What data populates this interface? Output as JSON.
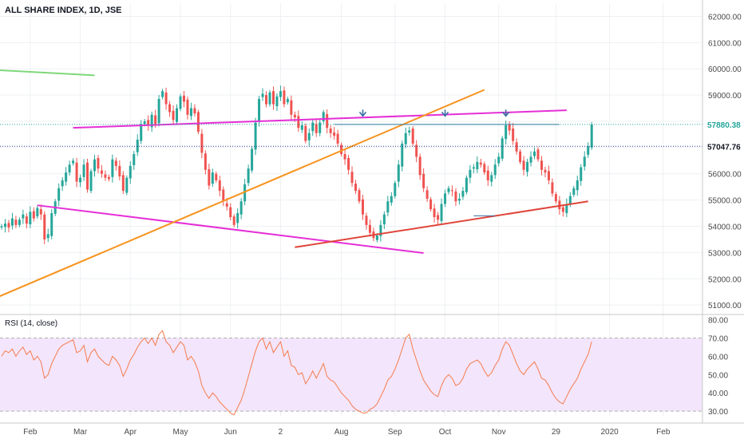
{
  "header": {
    "title": "ALL SHARE INDEX, 1D, JSE",
    "rsi_label": "RSI (14, close)"
  },
  "colors": {
    "up": "#26a69a",
    "down": "#ef5350",
    "grid": "#eef0f3",
    "axis_text": "#4a4a4a",
    "trend_magenta": "#e52fd6",
    "trend_orange": "#f7931e",
    "trend_red": "#e0453a",
    "trend_green": "#7ed87a",
    "trend_blue": "#3a6ea5",
    "rsi_line": "#f57c4d",
    "rsi_band": "#f3e5fb",
    "price_label_bg": "#131722"
  },
  "chart_data": [
    {
      "type": "candlestick",
      "title": "ALL SHARE INDEX, 1D, JSE",
      "x_ticks": [
        "Feb",
        "Mar",
        "Apr",
        "May",
        "Jun",
        "2",
        "Aug",
        "Sep",
        "Oct",
        "Nov",
        "29",
        "2020",
        "Feb"
      ],
      "y_ticks": [
        "62000.00",
        "61000.00",
        "60000.00",
        "59000.00",
        "58000.00",
        "57000.00",
        "56000.00",
        "55000.00",
        "54000.00",
        "53000.00",
        "52000.00",
        "51000.00"
      ],
      "y_tick_values": [
        62000,
        61000,
        60000,
        59000,
        58000,
        57000,
        56000,
        55000,
        54000,
        53000,
        52000,
        51000
      ],
      "ylim": [
        50700,
        62500
      ],
      "price_labels": [
        {
          "text": "57880.38",
          "value": 57880.38
        },
        {
          "text": "57047.76",
          "value": 57047.76
        }
      ],
      "closes": [
        54000,
        54100,
        53950,
        54300,
        54050,
        54250,
        54450,
        54100,
        54550,
        54300,
        54700,
        54450,
        53500,
        53700,
        54500,
        54950,
        55450,
        55750,
        56050,
        56350,
        56500,
        55700,
        55850,
        56350,
        55400,
        56100,
        56550,
        56200,
        56000,
        55850,
        55800,
        56550,
        56300,
        55900,
        55350,
        55850,
        56300,
        56750,
        57300,
        57900,
        58000,
        57850,
        58250,
        57900,
        58850,
        59150,
        58650,
        58350,
        58050,
        58500,
        58950,
        58750,
        58250,
        58500,
        58300,
        57600,
        56800,
        56150,
        55550,
        56050,
        55750,
        55350,
        54950,
        54750,
        54350,
        54050,
        54500,
        54950,
        55600,
        56200,
        56950,
        57950,
        58850,
        59050,
        58650,
        59100,
        58650,
        58950,
        59150,
        58650,
        58850,
        58250,
        58150,
        57750,
        57850,
        57250,
        57550,
        57950,
        57550,
        57950,
        58350,
        57750,
        57550,
        57450,
        57150,
        56750,
        56550,
        56150,
        55650,
        55350,
        54950,
        54450,
        54050,
        53750,
        53550,
        53650,
        54050,
        54450,
        54950,
        55150,
        55650,
        56350,
        57150,
        57550,
        57650,
        57150,
        56650,
        55950,
        55450,
        55050,
        54650,
        54350,
        54250,
        54850,
        55250,
        55450,
        55350,
        54950,
        55050,
        55350,
        55850,
        56150,
        56250,
        56450,
        56350,
        56050,
        55750,
        55950,
        56350,
        56650,
        57350,
        57850,
        57650,
        57250,
        56850,
        56450,
        56150,
        56450,
        56650,
        56850,
        56550,
        56150,
        56050,
        55750,
        55250,
        54950,
        54650,
        54550,
        54850,
        55150,
        55450,
        55750,
        56250,
        56650,
        57050,
        57880
      ]
    },
    {
      "type": "line",
      "title": "RSI (14, close)",
      "y_ticks": [
        "80.00",
        "70.00",
        "60.00",
        "50.00",
        "40.00",
        "30.00"
      ],
      "y_tick_values": [
        80,
        70,
        60,
        50,
        40,
        30
      ],
      "ylim": [
        27,
        82
      ],
      "band": [
        30,
        70
      ],
      "values": [
        60,
        63,
        62,
        64,
        60,
        63,
        65,
        61,
        63,
        58,
        60,
        57,
        48,
        50,
        56,
        60,
        64,
        66,
        67,
        68,
        69,
        62,
        63,
        66,
        57,
        62,
        64,
        60,
        58,
        56,
        55,
        60,
        58,
        55,
        49,
        53,
        58,
        61,
        65,
        68,
        70,
        67,
        70,
        66,
        72,
        74,
        68,
        66,
        62,
        65,
        68,
        66,
        58,
        60,
        57,
        52,
        44,
        40,
        37,
        40,
        38,
        35,
        33,
        31,
        29,
        28,
        32,
        36,
        42,
        49,
        56,
        63,
        68,
        70,
        64,
        68,
        62,
        65,
        68,
        60,
        63,
        55,
        54,
        50,
        51,
        45,
        48,
        52,
        48,
        52,
        56,
        49,
        47,
        46,
        43,
        40,
        38,
        36,
        33,
        31,
        30,
        29,
        29,
        31,
        32,
        34,
        38,
        42,
        47,
        49,
        53,
        58,
        64,
        70,
        72,
        64,
        58,
        52,
        47,
        44,
        41,
        39,
        38,
        44,
        48,
        50,
        48,
        44,
        45,
        48,
        53,
        56,
        57,
        58,
        56,
        52,
        49,
        51,
        55,
        58,
        64,
        68,
        66,
        61,
        56,
        52,
        50,
        53,
        55,
        57,
        53,
        48,
        47,
        44,
        40,
        37,
        35,
        34,
        38,
        42,
        45,
        48,
        53,
        57,
        61,
        68
      ]
    }
  ],
  "trendlines": [
    {
      "name": "upper-resistance",
      "color": "magenta",
      "from": [
        20,
        57750
      ],
      "to": [
        158,
        58420
      ]
    },
    {
      "name": "lower-support",
      "color": "magenta",
      "from": [
        10,
        54800
      ],
      "to": [
        118,
        52980
      ]
    },
    {
      "name": "rising-trend",
      "color": "orange",
      "from": [
        -8,
        50900
      ],
      "to": [
        135,
        59200
      ]
    },
    {
      "name": "rising-support",
      "color": "red",
      "from": [
        82,
        53200
      ],
      "to": [
        164,
        54950
      ]
    },
    {
      "name": "old-resistance",
      "color": "green",
      "from": [
        -8,
        60000
      ],
      "to": [
        26,
        59750
      ]
    },
    {
      "name": "resistance-horizontal",
      "color": "blue",
      "from": [
        93,
        57880
      ],
      "to": [
        156,
        57880
      ]
    },
    {
      "name": "support-tick",
      "color": "blue",
      "from": [
        132,
        54400
      ],
      "to": [
        138,
        54400
      ]
    }
  ],
  "markers": [
    {
      "name": "arrow-1",
      "bar": 101,
      "value": 58080
    },
    {
      "name": "arrow-2",
      "bar": 124,
      "value": 58080
    },
    {
      "name": "arrow-3",
      "bar": 141,
      "value": 58080
    }
  ]
}
